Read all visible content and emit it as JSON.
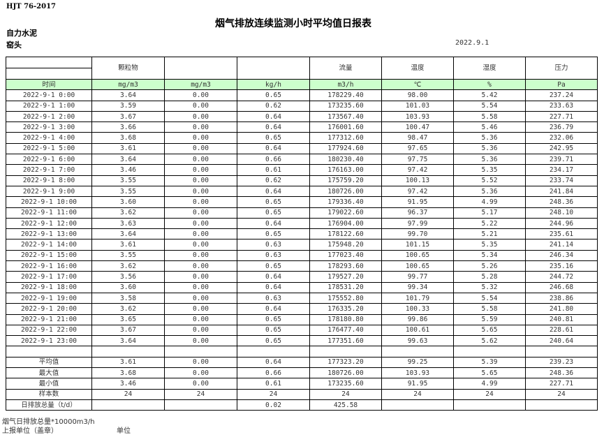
{
  "standard": "HJT  76-2017",
  "title": "烟气排放连续监测小时平均值日报表",
  "company": "自力水泥",
  "unit": "窑头",
  "date": "2022.9.1",
  "header": {
    "columns": [
      "",
      "颗粒物",
      "",
      "",
      "流量",
      "温度",
      "湿度",
      "压力"
    ],
    "units": [
      "时间",
      "mg/m3",
      "mg/m3",
      "kg/h",
      "m3/h",
      "℃",
      "%",
      "Pa"
    ]
  },
  "rows": [
    [
      "2022-9-1 0:00",
      "3.64",
      "0.00",
      "0.65",
      "178229.40",
      "98.00",
      "5.42",
      "237.24"
    ],
    [
      "2022-9-1 1:00",
      "3.59",
      "0.00",
      "0.62",
      "173235.60",
      "101.03",
      "5.54",
      "233.63"
    ],
    [
      "2022-9-1 2:00",
      "3.67",
      "0.00",
      "0.64",
      "173567.40",
      "103.93",
      "5.58",
      "227.71"
    ],
    [
      "2022-9-1 3:00",
      "3.66",
      "0.00",
      "0.64",
      "176001.60",
      "100.47",
      "5.46",
      "236.79"
    ],
    [
      "2022-9-1 4:00",
      "3.68",
      "0.00",
      "0.65",
      "177312.60",
      "98.47",
      "5.36",
      "232.06"
    ],
    [
      "2022-9-1 5:00",
      "3.61",
      "0.00",
      "0.64",
      "177924.60",
      "97.65",
      "5.36",
      "242.95"
    ],
    [
      "2022-9-1 6:00",
      "3.64",
      "0.00",
      "0.66",
      "180230.40",
      "97.75",
      "5.36",
      "239.71"
    ],
    [
      "2022-9-1 7:00",
      "3.46",
      "0.00",
      "0.61",
      "176163.00",
      "97.42",
      "5.35",
      "234.17"
    ],
    [
      "2022-9-1 8:00",
      "3.55",
      "0.00",
      "0.62",
      "175759.20",
      "100.13",
      "5.52",
      "233.74"
    ],
    [
      "2022-9-1 9:00",
      "3.55",
      "0.00",
      "0.64",
      "180726.00",
      "97.42",
      "5.36",
      "241.84"
    ],
    [
      "2022-9-1 10:00",
      "3.60",
      "0.00",
      "0.65",
      "179336.40",
      "91.95",
      "4.99",
      "248.36"
    ],
    [
      "2022-9-1 11:00",
      "3.62",
      "0.00",
      "0.65",
      "179022.60",
      "96.37",
      "5.17",
      "248.10"
    ],
    [
      "2022-9-1 12:00",
      "3.63",
      "0.00",
      "0.64",
      "176904.00",
      "97.99",
      "5.22",
      "244.96"
    ],
    [
      "2022-9-1 13:00",
      "3.64",
      "0.00",
      "0.65",
      "178122.60",
      "99.70",
      "5.21",
      "235.61"
    ],
    [
      "2022-9-1 14:00",
      "3.61",
      "0.00",
      "0.63",
      "175948.20",
      "101.15",
      "5.35",
      "241.14"
    ],
    [
      "2022-9-1 15:00",
      "3.55",
      "0.00",
      "0.63",
      "177023.40",
      "100.65",
      "5.34",
      "246.34"
    ],
    [
      "2022-9-1 16:00",
      "3.62",
      "0.00",
      "0.65",
      "178293.60",
      "100.65",
      "5.26",
      "235.16"
    ],
    [
      "2022-9-1 17:00",
      "3.56",
      "0.00",
      "0.64",
      "179527.20",
      "99.77",
      "5.28",
      "244.72"
    ],
    [
      "2022-9-1 18:00",
      "3.60",
      "0.00",
      "0.64",
      "178531.20",
      "99.34",
      "5.32",
      "246.68"
    ],
    [
      "2022-9-1 19:00",
      "3.58",
      "0.00",
      "0.63",
      "175552.80",
      "101.79",
      "5.54",
      "238.86"
    ],
    [
      "2022-9-1 20:00",
      "3.62",
      "0.00",
      "0.64",
      "176335.20",
      "100.33",
      "5.58",
      "241.80"
    ],
    [
      "2022-9-1 21:00",
      "3.65",
      "0.00",
      "0.65",
      "178180.80",
      "99.86",
      "5.59",
      "240.81"
    ],
    [
      "2022-9-1 22:00",
      "3.67",
      "0.00",
      "0.65",
      "176477.40",
      "100.61",
      "5.65",
      "228.61"
    ],
    [
      "2022-9-1 23:00",
      "3.64",
      "0.00",
      "0.65",
      "177351.60",
      "99.63",
      "5.62",
      "240.64"
    ]
  ],
  "stats": [
    [
      "平均值",
      "3.61",
      "0.00",
      "0.64",
      "177323.20",
      "99.25",
      "5.39",
      "239.23"
    ],
    [
      "最大值",
      "3.68",
      "0.00",
      "0.66",
      "180726.00",
      "103.93",
      "5.65",
      "248.36"
    ],
    [
      "最小值",
      "3.46",
      "0.00",
      "0.61",
      "173235.60",
      "91.95",
      "4.99",
      "227.71"
    ],
    [
      "样本数",
      "24",
      "24",
      "24",
      "24",
      "24",
      "24",
      "24"
    ],
    [
      "日排放总量（t/d）",
      "",
      "",
      "0.02",
      "425.58",
      "",
      "",
      ""
    ]
  ],
  "footer": {
    "note": "烟气日排放总量*10000m3/h",
    "report_unit": "上报单位（盖章）",
    "unit_label": "单位"
  }
}
